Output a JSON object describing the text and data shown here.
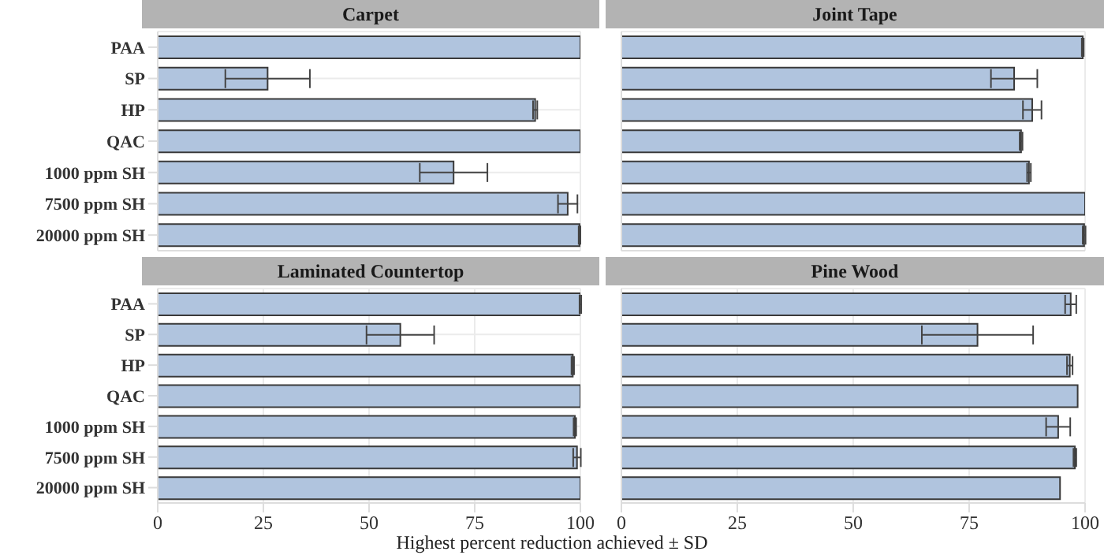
{
  "chart_data": [
    {
      "type": "bar",
      "orientation": "horizontal",
      "title": "Carpet",
      "categories": [
        "PAA",
        "SP",
        "HP",
        "QAC",
        "1000 ppm SH",
        "7500 ppm SH",
        "20000 ppm SH"
      ],
      "values": [
        100,
        26,
        89.3,
        100,
        70,
        97,
        99.8
      ],
      "errors": [
        null,
        10,
        0.5,
        null,
        8,
        2.3,
        0.2
      ],
      "color": "#b0c4de",
      "xlim": [
        0,
        100
      ],
      "xticks": [
        0,
        25,
        50,
        75,
        100
      ],
      "grid": true,
      "tick_labels": "y"
    },
    {
      "type": "bar",
      "orientation": "horizontal",
      "title": "Joint Tape",
      "categories": [
        null,
        null,
        null,
        null,
        null,
        null,
        null
      ],
      "values": [
        99.5,
        84.7,
        88.6,
        86.2,
        87.9,
        100,
        99.8
      ],
      "errors": [
        0.2,
        5,
        2,
        0.3,
        0.4,
        null,
        0.3
      ],
      "color": "#b0c4de",
      "xlim": [
        0,
        100
      ],
      "xticks": [
        0,
        25,
        50,
        75,
        100
      ],
      "grid": true,
      "tick_labels": false
    },
    {
      "type": "bar",
      "orientation": "horizontal",
      "title": "Laminated Countertop",
      "categories": [
        "PAA",
        "SP",
        "HP",
        "QAC",
        "1000 ppm SH",
        "7500 ppm SH",
        "20000 ppm SH"
      ],
      "values": [
        100,
        57.4,
        98.2,
        100,
        98.7,
        99.2,
        100
      ],
      "errors": [
        0.2,
        8,
        0.3,
        null,
        0.3,
        0.9,
        null
      ],
      "color": "#b0c4de",
      "xlim": [
        0,
        100
      ],
      "xticks": [
        0,
        25,
        50,
        75,
        100
      ],
      "grid": true,
      "xlabel": "Highest percent reduction achieved ± SD"
    },
    {
      "type": "bar",
      "orientation": "horizontal",
      "title": "Pine Wood",
      "categories": [
        null,
        null,
        null,
        null,
        null,
        null,
        null
      ],
      "values": [
        96.9,
        76.8,
        96.7,
        98.4,
        94.2,
        97.8,
        94.6
      ],
      "errors": [
        1.2,
        12,
        0.6,
        null,
        2.6,
        0.3,
        null
      ],
      "color": "#b0c4de",
      "xlim": [
        0,
        100
      ],
      "xticks": [
        0,
        25,
        50,
        75,
        100
      ],
      "grid": true,
      "tick_labels": "x"
    }
  ]
}
